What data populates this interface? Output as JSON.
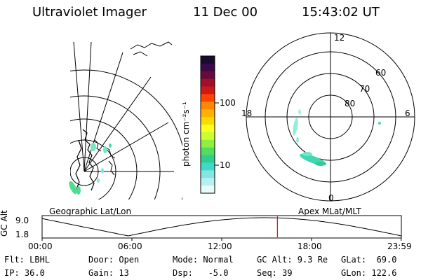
{
  "header": {
    "instrument": "Ultraviolet Imager",
    "date": "11 Dec 00",
    "time": "15:43:02 UT"
  },
  "panels": {
    "geographic_label": "Geographic Lat/Lon",
    "magnetic_label": "Apex MLat/MLT"
  },
  "colorbar": {
    "unit_label": "photon cm⁻²s⁻¹",
    "tick_100": "100",
    "tick_10": "10",
    "colors": [
      "#1a0a2e",
      "#3a0a4a",
      "#6a0a3a",
      "#a0102a",
      "#d01818",
      "#ff4400",
      "#ff8800",
      "#ffb000",
      "#ffd800",
      "#ffff20",
      "#c8ff30",
      "#90ee40",
      "#50dd60",
      "#30cc90",
      "#40d8c8",
      "#80e8e0",
      "#b8f0f0",
      "#e8fafa"
    ]
  },
  "polar": {
    "mlt_12": "12",
    "mlt_18": "18",
    "mlt_6": "6",
    "mlt_0": "0",
    "lat_60": "60",
    "lat_70": "70",
    "lat_80": "80"
  },
  "timeline": {
    "ylabel": "GC Alt",
    "ymax": "9.0",
    "ymin": "1.8",
    "ticks": [
      "00:00",
      "06:00",
      "12:00",
      "18:00",
      "23:59"
    ],
    "current_marker_hours": 15.72
  },
  "info": {
    "flt": "Flt: LBHL",
    "ip": "IP: 36.0",
    "door": "Door: Open",
    "gain": "Gain: 13",
    "mode": "Mode: Normal",
    "dsp": "Dsp:   -5.0",
    "gc_alt": "GC Alt: 9.3 Re",
    "seq": "Seq: 39",
    "glat": "GLat:  69.0",
    "glon": "GLon: 122.6"
  }
}
